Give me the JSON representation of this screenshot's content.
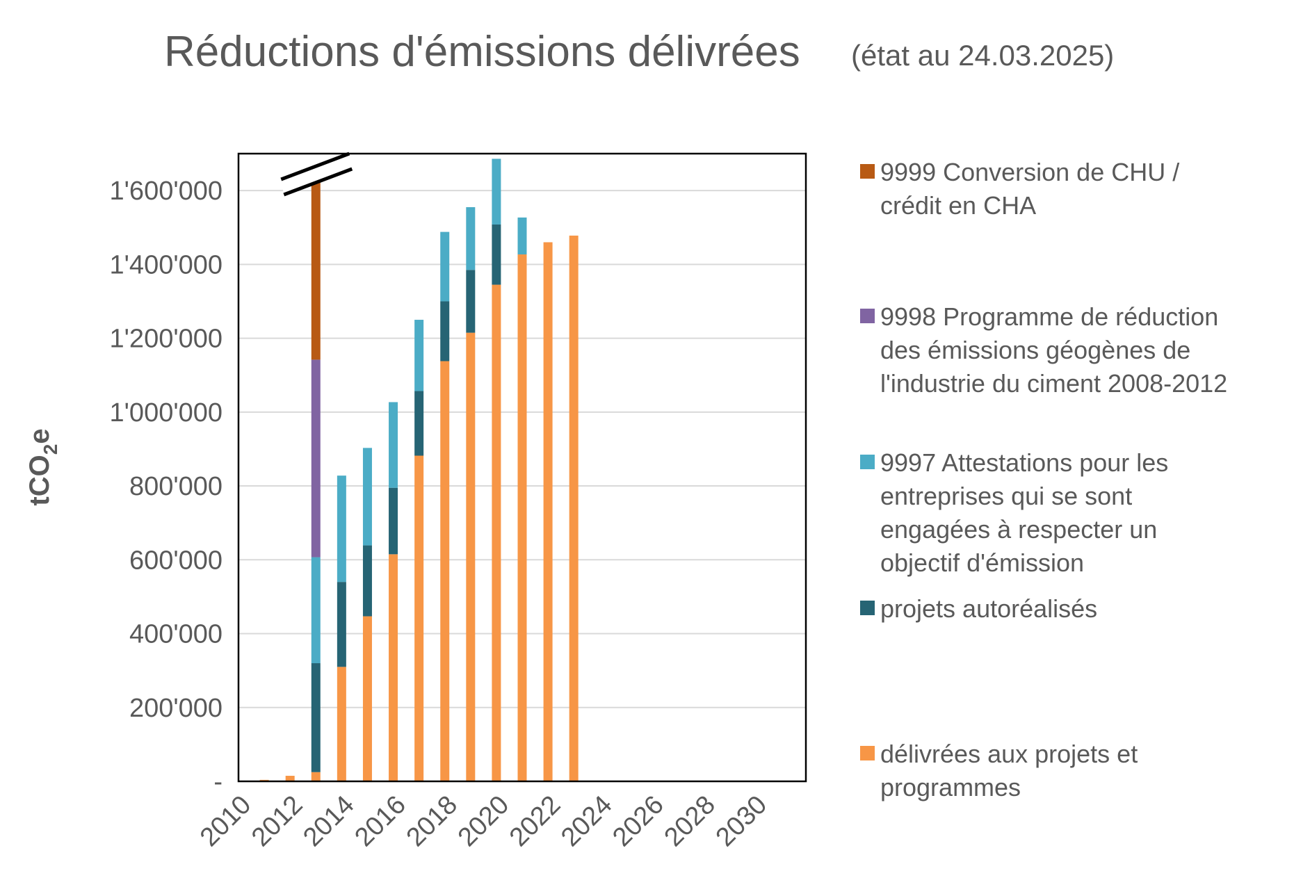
{
  "chart_data": {
    "type": "bar",
    "stacked": true,
    "title": "Réductions d'émissions délivrées",
    "subtitle": "(état au 24.03.2025)",
    "ylabel_main": "tCO",
    "ylabel_sub": "2",
    "ylabel_tail": "e",
    "ylim": [
      0,
      1700000
    ],
    "y_ticks": [
      0,
      200000,
      400000,
      600000,
      800000,
      1000000,
      1200000,
      1400000,
      1600000
    ],
    "y_tick_labels": [
      "-",
      "200'000",
      "400'000",
      "600'000",
      "800'000",
      "1'000'000",
      "1'200'000",
      "1'400'000",
      "1'600'000"
    ],
    "xlim": [
      2010,
      2032
    ],
    "x_ticks": [
      2010,
      2012,
      2014,
      2016,
      2018,
      2020,
      2022,
      2024,
      2026,
      2028,
      2030
    ],
    "x_tick_labels": [
      "2010",
      "2012",
      "2014",
      "2016",
      "2018",
      "2020",
      "2022",
      "2024",
      "2026",
      "2028",
      "2030"
    ],
    "categories": [
      2011,
      2012,
      2013,
      2014,
      2015,
      2016,
      2017,
      2018,
      2019,
      2020,
      2021,
      2022,
      2023
    ],
    "axis_break_year": 2013,
    "series": [
      {
        "name": "délivrées aux projets et programmes",
        "color": "#f79646",
        "values": [
          4000,
          15000,
          25000,
          310000,
          447000,
          615000,
          882000,
          1138000,
          1215000,
          1345000,
          1427000,
          1460000,
          1478000
        ]
      },
      {
        "name": "projets autoréalisés",
        "color": "#266474",
        "values": [
          0,
          0,
          295000,
          230000,
          192000,
          180000,
          175000,
          162000,
          170000,
          163000,
          0,
          0,
          0
        ]
      },
      {
        "name": "9997 Attestations pour les entreprises qui se sont engagées à respecter un objectif d'émission",
        "color": "#4bacc6",
        "values": [
          0,
          0,
          287000,
          288000,
          264000,
          232000,
          193000,
          188000,
          170000,
          178000,
          100000,
          0,
          0
        ]
      },
      {
        "name": "9998 Programme de réduction des émissions géogènes de l'industrie du ciment 2008-2012",
        "color": "#8064a2",
        "values": [
          0,
          0,
          535000,
          0,
          0,
          0,
          0,
          0,
          0,
          0,
          0,
          0,
          0
        ]
      },
      {
        "name": "9999 Conversion de CHU / crédit en CHA",
        "color": "#b85a14",
        "values": [
          0,
          0,
          480000,
          0,
          0,
          0,
          0,
          0,
          0,
          0,
          0,
          0,
          0
        ]
      }
    ],
    "legend": [
      {
        "color": "#b85a14",
        "lines": [
          "9999 Conversion de CHU /",
          "crédit en CHA"
        ]
      },
      {
        "color": "#8064a2",
        "lines": [
          "9998 Programme de réduction",
          "des émissions géogènes de",
          "l'industrie du ciment 2008-2012"
        ]
      },
      {
        "color": "#4bacc6",
        "lines": [
          "9997 Attestations pour les",
          "entreprises qui se sont",
          "engagées à respecter un",
          "objectif d'émission"
        ]
      },
      {
        "color": "#266474",
        "lines": [
          "projets autoréalisés"
        ]
      },
      {
        "color": "#f79646",
        "lines": [
          "délivrées aux projets et",
          "programmes"
        ]
      }
    ],
    "legend_position": "right",
    "grid": true
  }
}
